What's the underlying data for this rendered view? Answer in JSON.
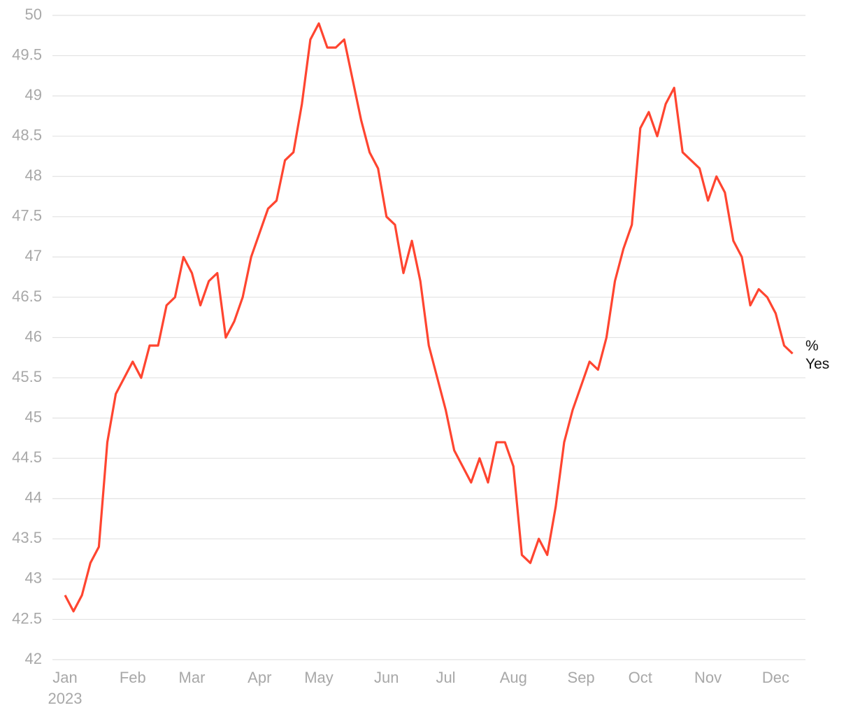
{
  "chart_data": {
    "type": "line",
    "categories": [
      "Jan",
      null,
      null,
      null,
      null,
      null,
      null,
      null,
      "Feb",
      null,
      null,
      null,
      null,
      null,
      null,
      "Mar",
      null,
      null,
      null,
      null,
      null,
      null,
      null,
      "Apr",
      null,
      null,
      null,
      null,
      null,
      null,
      "May",
      null,
      null,
      null,
      null,
      null,
      null,
      null,
      "Jun",
      null,
      null,
      null,
      null,
      null,
      null,
      "Jul",
      null,
      null,
      null,
      null,
      null,
      null,
      null,
      "Aug",
      null,
      null,
      null,
      null,
      null,
      null,
      null,
      "Sep",
      null,
      null,
      null,
      null,
      null,
      null,
      "Oct",
      null,
      null,
      null,
      null,
      null,
      null,
      null,
      "Nov",
      null,
      null,
      null,
      null,
      null,
      null,
      null,
      "Dec",
      null,
      null
    ],
    "x_year": "2023",
    "series": [
      {
        "name": "% Yes",
        "color": "#ff4530",
        "values": [
          42.8,
          42.6,
          42.8,
          43.2,
          43.4,
          44.7,
          45.3,
          45.5,
          45.7,
          45.5,
          45.9,
          45.9,
          46.4,
          46.5,
          47.0,
          46.8,
          46.4,
          46.7,
          46.8,
          46.0,
          46.2,
          46.5,
          47.0,
          47.3,
          47.6,
          47.7,
          48.2,
          48.3,
          48.9,
          49.7,
          49.9,
          49.6,
          49.6,
          49.7,
          49.2,
          48.7,
          48.3,
          48.1,
          47.5,
          47.4,
          46.8,
          47.2,
          46.7,
          45.9,
          45.5,
          45.1,
          44.6,
          44.4,
          44.2,
          44.5,
          44.2,
          44.7,
          44.7,
          44.4,
          43.3,
          43.2,
          43.5,
          43.3,
          43.9,
          44.7,
          45.1,
          45.4,
          45.7,
          45.6,
          46.0,
          46.7,
          47.1,
          47.4,
          48.6,
          48.8,
          48.5,
          48.9,
          49.1,
          48.3,
          48.2,
          48.1,
          47.7,
          48.0,
          47.8,
          47.2,
          47.0,
          46.4,
          46.6,
          46.5,
          46.3,
          45.9,
          45.8
        ]
      }
    ],
    "ylim": [
      42,
      50
    ],
    "yticks": [
      42,
      42.5,
      43,
      43.5,
      44,
      44.5,
      45,
      45.5,
      46,
      46.5,
      47,
      47.5,
      48,
      48.5,
      49,
      49.5,
      50
    ],
    "grid": true
  }
}
